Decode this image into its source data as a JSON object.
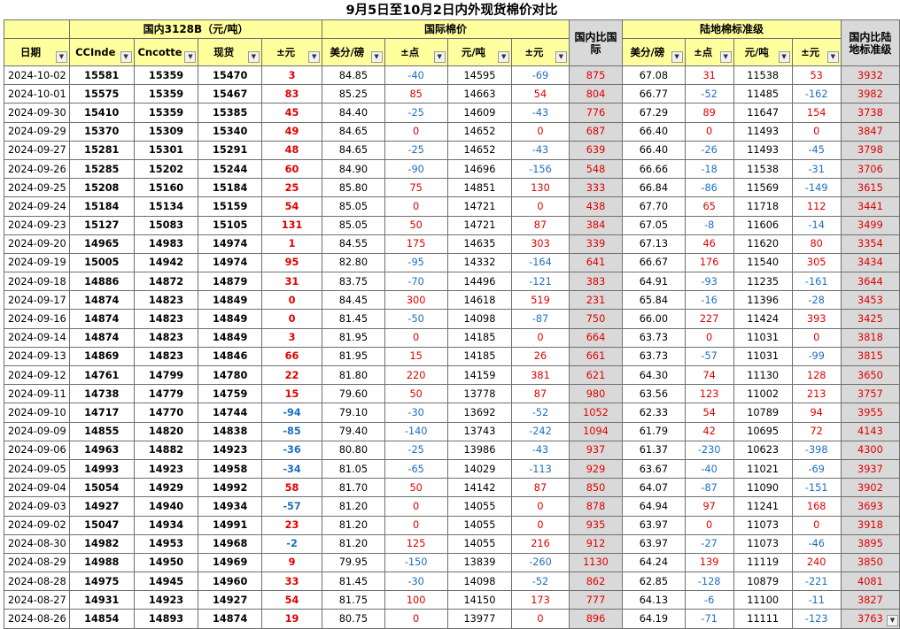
{
  "title": "9月5日至10月2日内外现货棉价对比",
  "groups": {
    "domestic": "国内3128B（元/吨）",
    "international": "国际棉价",
    "landed": "陆地棉标准级"
  },
  "headers": {
    "date": "日期",
    "ccindex": "CCInde",
    "cncotton": "Cncotte",
    "spot": "现货",
    "chg_yuan": "±元",
    "usd_lb": "美分/磅",
    "chg_pt": "±点",
    "yuan_ton": "元/吨",
    "chg_yuan2": "±元",
    "dom_vs_intl": "国内比国际",
    "usd_lb2": "美分/磅",
    "chg_pt2": "±点",
    "yuan_ton2": "元/吨",
    "chg_yuan3": "±元",
    "dom_vs_landed": "国内比陆地标准级"
  },
  "filter_icon": "dropdown-arrow-icon",
  "colors": {
    "header_bg": "#ffff9e",
    "gray_col": "#d9d9d9",
    "up": "#e00000",
    "down": "#1f6fbf"
  },
  "rows": [
    [
      "2024-10-02",
      "15581",
      "15359",
      "15470",
      "3",
      "84.85",
      "-40",
      "14595",
      "-69",
      "875",
      "67.08",
      "31",
      "11538",
      "53",
      "3932"
    ],
    [
      "2024-10-01",
      "15575",
      "15359",
      "15467",
      "83",
      "85.25",
      "85",
      "14663",
      "54",
      "804",
      "66.77",
      "-52",
      "11485",
      "-162",
      "3982"
    ],
    [
      "2024-09-30",
      "15410",
      "15359",
      "15385",
      "45",
      "84.40",
      "-25",
      "14609",
      "-43",
      "776",
      "67.29",
      "89",
      "11647",
      "154",
      "3738"
    ],
    [
      "2024-09-29",
      "15370",
      "15309",
      "15340",
      "49",
      "84.65",
      "0",
      "14652",
      "0",
      "687",
      "66.40",
      "0",
      "11493",
      "0",
      "3847"
    ],
    [
      "2024-09-27",
      "15281",
      "15301",
      "15291",
      "48",
      "84.65",
      "-25",
      "14652",
      "-43",
      "639",
      "66.40",
      "-26",
      "11493",
      "-45",
      "3798"
    ],
    [
      "2024-09-26",
      "15285",
      "15202",
      "15244",
      "60",
      "84.90",
      "-90",
      "14696",
      "-156",
      "548",
      "66.66",
      "-18",
      "11538",
      "-31",
      "3706"
    ],
    [
      "2024-09-25",
      "15208",
      "15160",
      "15184",
      "25",
      "85.80",
      "75",
      "14851",
      "130",
      "333",
      "66.84",
      "-86",
      "11569",
      "-149",
      "3615"
    ],
    [
      "2024-09-24",
      "15184",
      "15134",
      "15159",
      "54",
      "85.05",
      "0",
      "14721",
      "0",
      "438",
      "67.70",
      "65",
      "11718",
      "112",
      "3441"
    ],
    [
      "2024-09-23",
      "15127",
      "15083",
      "15105",
      "131",
      "85.05",
      "50",
      "14721",
      "87",
      "384",
      "67.05",
      "-8",
      "11606",
      "-14",
      "3499"
    ],
    [
      "2024-09-20",
      "14965",
      "14983",
      "14974",
      "1",
      "84.55",
      "175",
      "14635",
      "303",
      "339",
      "67.13",
      "46",
      "11620",
      "80",
      "3354"
    ],
    [
      "2024-09-19",
      "15005",
      "14942",
      "14974",
      "95",
      "82.80",
      "-95",
      "14332",
      "-164",
      "641",
      "66.67",
      "176",
      "11540",
      "305",
      "3434"
    ],
    [
      "2024-09-18",
      "14886",
      "14872",
      "14879",
      "31",
      "83.75",
      "-70",
      "14496",
      "-121",
      "383",
      "64.91",
      "-93",
      "11235",
      "-161",
      "3644"
    ],
    [
      "2024-09-17",
      "14874",
      "14823",
      "14849",
      "0",
      "84.45",
      "300",
      "14618",
      "519",
      "231",
      "65.84",
      "-16",
      "11396",
      "-28",
      "3453"
    ],
    [
      "2024-09-16",
      "14874",
      "14823",
      "14849",
      "0",
      "81.45",
      "-50",
      "14098",
      "-87",
      "750",
      "66.00",
      "227",
      "11424",
      "393",
      "3425"
    ],
    [
      "2024-09-14",
      "14874",
      "14823",
      "14849",
      "3",
      "81.95",
      "0",
      "14185",
      "0",
      "664",
      "63.73",
      "0",
      "11031",
      "0",
      "3818"
    ],
    [
      "2024-09-13",
      "14869",
      "14823",
      "14846",
      "66",
      "81.95",
      "15",
      "14185",
      "26",
      "661",
      "63.73",
      "-57",
      "11031",
      "-99",
      "3815"
    ],
    [
      "2024-09-12",
      "14761",
      "14799",
      "14780",
      "22",
      "81.80",
      "220",
      "14159",
      "381",
      "621",
      "64.30",
      "74",
      "11130",
      "128",
      "3650"
    ],
    [
      "2024-09-11",
      "14738",
      "14779",
      "14759",
      "15",
      "79.60",
      "50",
      "13778",
      "87",
      "980",
      "63.56",
      "123",
      "11002",
      "213",
      "3757"
    ],
    [
      "2024-09-10",
      "14717",
      "14770",
      "14744",
      "-94",
      "79.10",
      "-30",
      "13692",
      "-52",
      "1052",
      "62.33",
      "54",
      "10789",
      "94",
      "3955"
    ],
    [
      "2024-09-09",
      "14855",
      "14820",
      "14838",
      "-85",
      "79.40",
      "-140",
      "13743",
      "-242",
      "1094",
      "61.79",
      "42",
      "10695",
      "72",
      "4143"
    ],
    [
      "2024-09-06",
      "14963",
      "14882",
      "14923",
      "-36",
      "80.80",
      "-25",
      "13986",
      "-43",
      "937",
      "61.37",
      "-230",
      "10623",
      "-398",
      "4300"
    ],
    [
      "2024-09-05",
      "14993",
      "14923",
      "14958",
      "-34",
      "81.05",
      "-65",
      "14029",
      "-113",
      "929",
      "63.67",
      "-40",
      "11021",
      "-69",
      "3937"
    ],
    [
      "2024-09-04",
      "15054",
      "14929",
      "14992",
      "58",
      "81.70",
      "50",
      "14142",
      "87",
      "850",
      "64.07",
      "-87",
      "11090",
      "-151",
      "3902"
    ],
    [
      "2024-09-03",
      "14927",
      "14940",
      "14934",
      "-57",
      "81.20",
      "0",
      "14055",
      "0",
      "878",
      "64.94",
      "97",
      "11241",
      "168",
      "3693"
    ],
    [
      "2024-09-02",
      "15047",
      "14934",
      "14991",
      "23",
      "81.20",
      "0",
      "14055",
      "0",
      "935",
      "63.97",
      "0",
      "11073",
      "0",
      "3918"
    ],
    [
      "2024-08-30",
      "14982",
      "14953",
      "14968",
      "-2",
      "81.20",
      "125",
      "14055",
      "216",
      "912",
      "63.97",
      "-27",
      "11073",
      "-46",
      "3895"
    ],
    [
      "2024-08-29",
      "14988",
      "14950",
      "14969",
      "9",
      "79.95",
      "-150",
      "13839",
      "-260",
      "1130",
      "64.24",
      "139",
      "11119",
      "240",
      "3850"
    ],
    [
      "2024-08-28",
      "14975",
      "14945",
      "14960",
      "33",
      "81.45",
      "-30",
      "14098",
      "-52",
      "862",
      "62.85",
      "-128",
      "10879",
      "-221",
      "4081"
    ],
    [
      "2024-08-27",
      "14931",
      "14923",
      "14927",
      "54",
      "81.75",
      "100",
      "14150",
      "173",
      "777",
      "64.13",
      "-6",
      "11100",
      "-11",
      "3827"
    ],
    [
      "2024-08-26",
      "14854",
      "14893",
      "14874",
      "19",
      "80.75",
      "0",
      "13977",
      "0",
      "896",
      "64.19",
      "-71",
      "11111",
      "-123",
      "3763"
    ]
  ]
}
